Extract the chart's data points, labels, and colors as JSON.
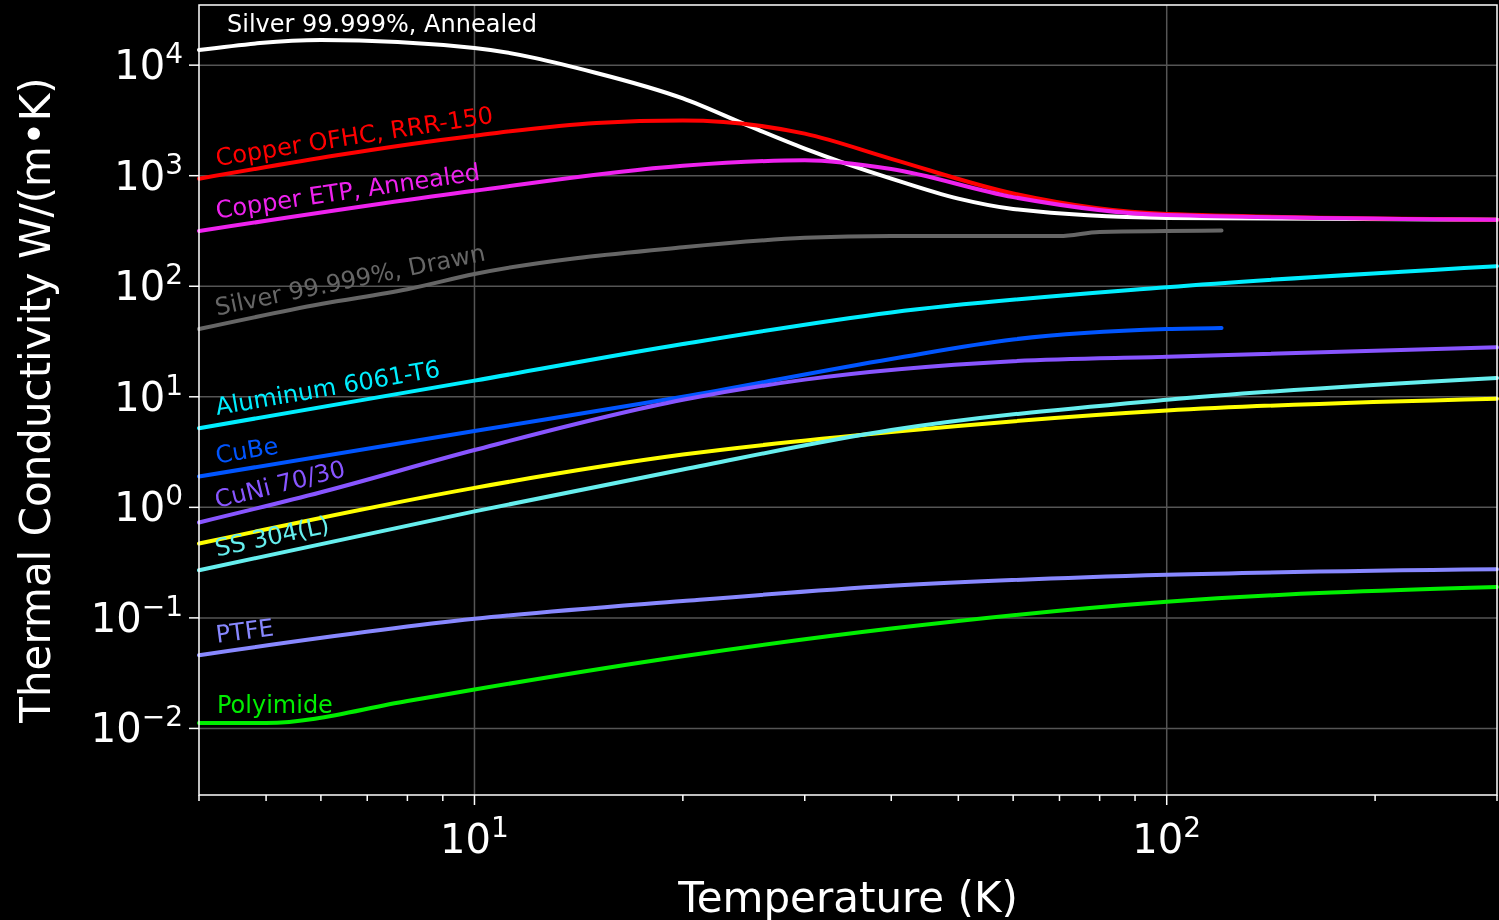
{
  "chart_data": {
    "type": "line",
    "xlabel": "Temperature (K)",
    "ylabel": "Thermal Conductivity W/(m•K)",
    "log": "xy",
    "grid": true,
    "xlim": [
      4,
      300
    ],
    "ylim": [
      0.0025,
      35000
    ],
    "xticks": [
      {
        "value": 4,
        "label": null
      },
      {
        "value": 5,
        "label": null
      },
      {
        "value": 6,
        "label": null
      },
      {
        "value": 7,
        "label": null
      },
      {
        "value": 8,
        "label": null
      },
      {
        "value": 9,
        "label": null
      },
      {
        "value": 10,
        "label": "10$^{1}$"
      },
      {
        "value": 20,
        "label": null
      },
      {
        "value": 30,
        "label": null
      },
      {
        "value": 40,
        "label": null
      },
      {
        "value": 50,
        "label": null
      },
      {
        "value": 60,
        "label": null
      },
      {
        "value": 70,
        "label": null
      },
      {
        "value": 80,
        "label": null
      },
      {
        "value": 90,
        "label": null
      },
      {
        "value": 100,
        "label": "10$^{2}$"
      },
      {
        "value": 200,
        "label": null
      },
      {
        "value": 300,
        "label": null
      }
    ],
    "yticks": [
      {
        "value": 0.01,
        "label": "10$^{−2}$"
      },
      {
        "value": 0.1,
        "label": "10$^{−1}$"
      },
      {
        "value": 1,
        "label": "10$^{0}$"
      },
      {
        "value": 10,
        "label": "10$^{1}$"
      },
      {
        "value": 100,
        "label": "10$^{2}$"
      },
      {
        "value": 1000,
        "label": "10$^{3}$"
      },
      {
        "value": 10000,
        "label": "10$^{4}$"
      }
    ],
    "series": [
      {
        "name": "Silver 99.999%, Annealed",
        "color": "#ffffff",
        "x": [
          4,
          6,
          10,
          15,
          20,
          25,
          30,
          40,
          50,
          60,
          100,
          300
        ],
        "values": [
          13700,
          16900,
          14300,
          8500,
          5000,
          2790,
          1760,
          940,
          620,
          500,
          415,
          400
        ]
      },
      {
        "name": "Copper OFHC, RRR-150",
        "color": "#ff0000",
        "x": [
          4,
          10,
          15,
          20,
          30,
          40,
          60,
          100,
          300
        ],
        "values": [
          940,
          2300,
          3000,
          3150,
          2400,
          1420,
          690,
          450,
          400
        ]
      },
      {
        "name": "Copper ETP, Annealed",
        "color": "#ee22ee",
        "x": [
          4,
          10,
          20,
          30,
          40,
          60,
          100,
          300
        ],
        "values": [
          316,
          730,
          1230,
          1380,
          1150,
          640,
          440,
          400
        ]
      },
      {
        "name": "Silver 99.999%, Drawn",
        "color": "#666666",
        "x": [
          4,
          6,
          8,
          10,
          20,
          30,
          40,
          70,
          80,
          120
        ],
        "values": [
          41,
          69,
          94,
          129,
          225,
          274,
          285,
          285,
          310,
          320
        ]
      },
      {
        "name": "Aluminum 6061-T6",
        "color": "#00eeff",
        "x": [
          4,
          10,
          20,
          40,
          100,
          300
        ],
        "values": [
          5.2,
          14,
          30,
          58,
          98,
          152
        ]
      },
      {
        "name": "CuBe",
        "color": "#0055ff",
        "x": [
          4,
          10,
          20,
          40,
          60,
          100,
          120
        ],
        "values": [
          1.9,
          4.9,
          10,
          22,
          33,
          41,
          42
        ]
      },
      {
        "name": "CuNi 70/30",
        "color": "#8855ff",
        "x": [
          4,
          6,
          10,
          20,
          30,
          60,
          100,
          300
        ],
        "values": [
          0.73,
          1.37,
          3.3,
          9.4,
          14.3,
          21,
          23,
          28
        ]
      },
      {
        "color": "#ffff00",
        "x": [
          4,
          10,
          20,
          40,
          100,
          300
        ],
        "values": [
          0.47,
          1.5,
          3.0,
          4.8,
          7.5,
          9.6
        ]
      },
      {
        "name": "SS 304(L)",
        "color": "#66eeee",
        "x": [
          4,
          10,
          20,
          40,
          100,
          300
        ],
        "values": [
          0.27,
          0.92,
          2.2,
          5.0,
          9.4,
          14.8
        ]
      },
      {
        "name": "PTFE",
        "color": "#8888ff",
        "x": [
          4,
          10,
          20,
          40,
          100,
          300
        ],
        "values": [
          0.046,
          0.098,
          0.142,
          0.195,
          0.245,
          0.275
        ]
      },
      {
        "name": "Polyimide",
        "color": "#00ee00",
        "x": [
          4,
          5,
          8,
          10,
          20,
          40,
          100,
          300
        ],
        "values": [
          0.0112,
          0.0112,
          0.0177,
          0.0225,
          0.045,
          0.08,
          0.14,
          0.19
        ]
      }
    ]
  }
}
